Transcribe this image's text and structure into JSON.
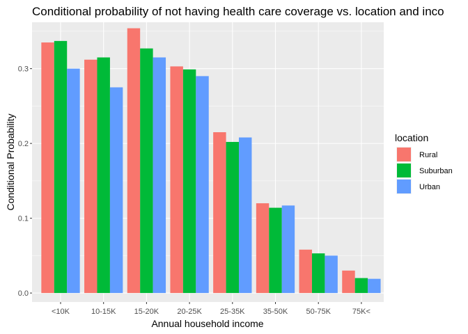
{
  "chart_data": {
    "type": "bar",
    "title": "Conditional probability of not having health care coverage vs. location and inco",
    "xlabel": "Annual household income",
    "ylabel": "Conditional Probability",
    "categories": [
      "<10K",
      "10-15K",
      "15-20K",
      "20-25K",
      "25-35K",
      "35-50K",
      "50-75K",
      "75K<"
    ],
    "ylim": [
      -0.012,
      0.362
    ],
    "yticks": [
      0.0,
      0.1,
      0.2,
      0.3
    ],
    "ytick_labels": [
      "0.0",
      "0.1",
      "0.2",
      "0.3"
    ],
    "grid": true,
    "legend": {
      "title": "location",
      "placement": "right"
    },
    "series": [
      {
        "name": "Rural",
        "color": "#F8766D",
        "values": [
          0.335,
          0.312,
          0.354,
          0.303,
          0.215,
          0.12,
          0.058,
          0.03
        ]
      },
      {
        "name": "Suburban",
        "color": "#00BA38",
        "values": [
          0.337,
          0.315,
          0.327,
          0.299,
          0.202,
          0.114,
          0.053,
          0.02
        ]
      },
      {
        "name": "Urban",
        "color": "#619CFF",
        "values": [
          0.3,
          0.275,
          0.315,
          0.29,
          0.208,
          0.117,
          0.05,
          0.019
        ]
      }
    ]
  }
}
